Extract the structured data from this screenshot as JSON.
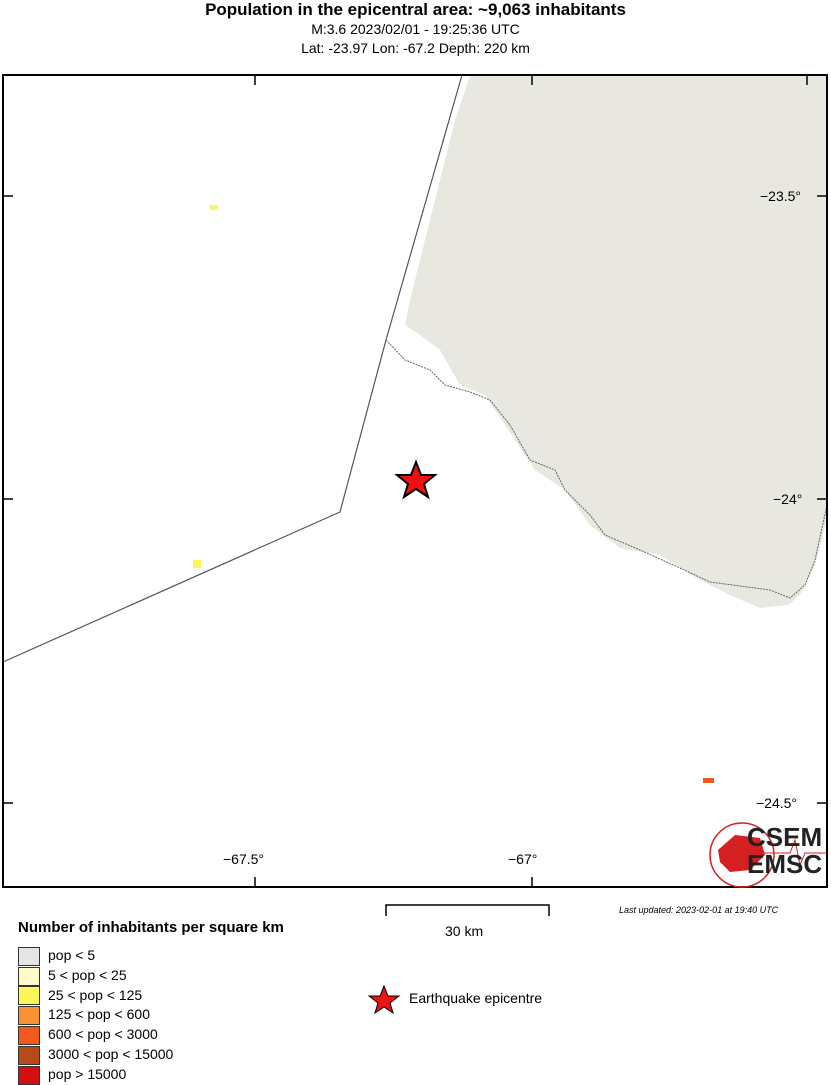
{
  "title": "Population in the epicentral area: ~9,063 inhabitants",
  "subtitle1": "M:3.6 2023/02/01 - 19:25:36 UTC",
  "subtitle2": "Lat: -23.97 Lon: -67.2 Depth: 220 km",
  "lat_ticks": [
    "−23.5°",
    "−24°",
    "−24.5°"
  ],
  "lon_ticks": [
    "−67.5°",
    "−67°"
  ],
  "scale_label": "30 km",
  "last_updated": "Last updated: 2023-02-01 at 19:40 UTC",
  "logo_text": [
    "CSEM",
    "EMSC"
  ],
  "legend": {
    "title": "Number of inhabitants per square km",
    "items": [
      {
        "label": "pop < 5",
        "color": "#e5e5e5"
      },
      {
        "label": "5 < pop < 25",
        "color": "#fdfbc9"
      },
      {
        "label": "25 < pop < 125",
        "color": "#fbf759"
      },
      {
        "label": "125 < pop < 600",
        "color": "#f99234"
      },
      {
        "label": "600 < pop < 3000",
        "color": "#f25a1b"
      },
      {
        "label": "3000 < pop < 15000",
        "color": "#b74a17"
      },
      {
        "label": "pop > 15000",
        "color": "#d40f0f"
      }
    ],
    "epicentre_label": "Earthquake epicentre"
  },
  "colors": {
    "land_gray": "#e8e8e0",
    "epicentre": "#ee1111"
  }
}
